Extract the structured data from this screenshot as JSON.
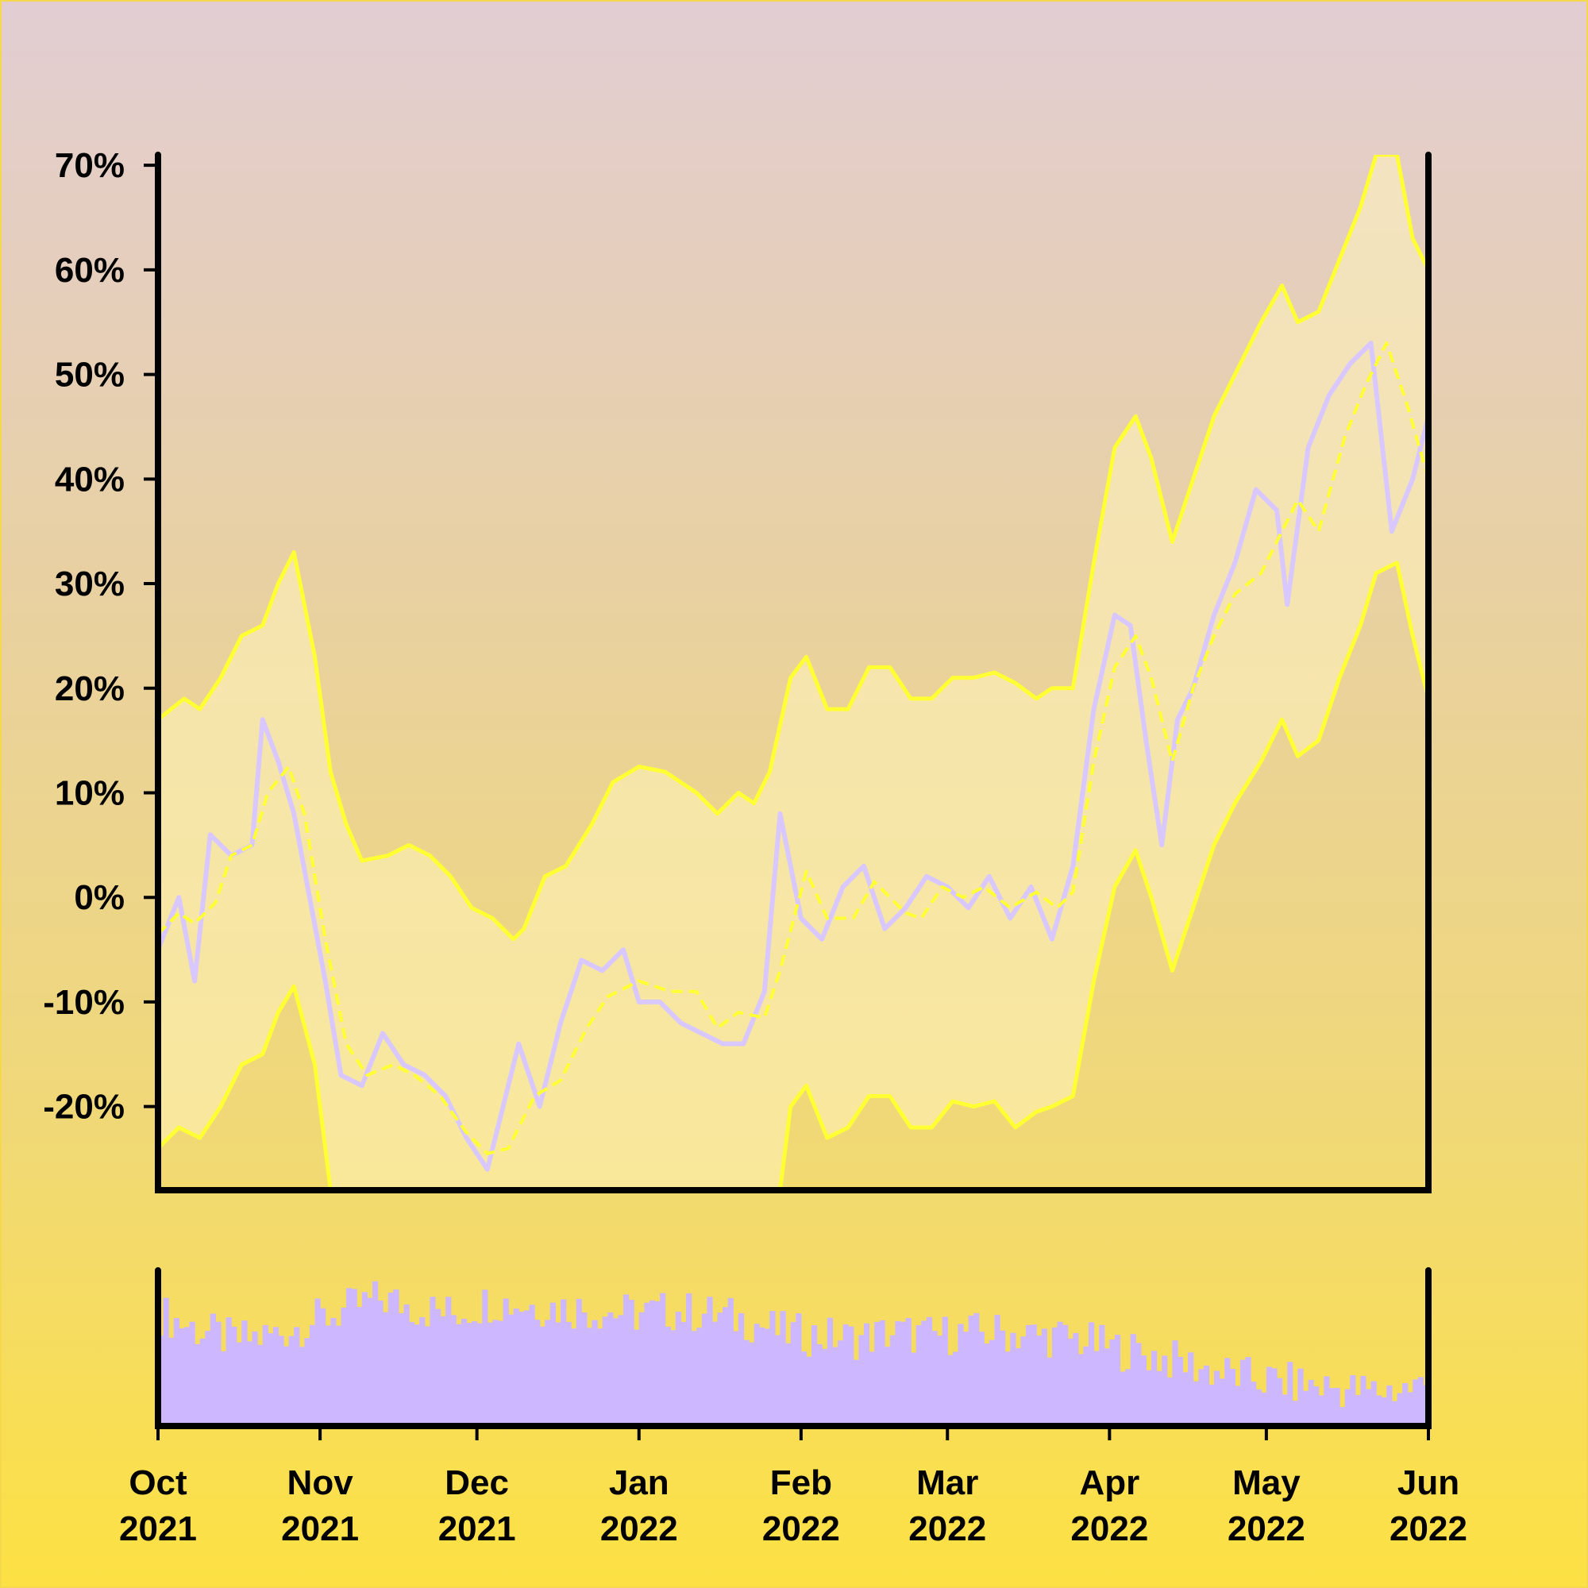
{
  "colors": {
    "band": "#ffff33",
    "price": "#d8c8ff",
    "volume": "#cdb8ff",
    "band_fill": "#fff4bb",
    "axis": "#000000"
  },
  "chart_data": {
    "type": "line",
    "title": "",
    "xlabel": "",
    "ylabel": "",
    "x_range": [
      "2021-10-01",
      "2022-06-01"
    ],
    "ylim": [
      -28,
      71
    ],
    "y_ticks": [
      70,
      60,
      50,
      40,
      30,
      20,
      10,
      0,
      -10,
      -20
    ],
    "y_tick_labels": [
      "70%",
      "60%",
      "50%",
      "40%",
      "30%",
      "20%",
      "10%",
      "0%",
      "-10%",
      "-20%"
    ],
    "x_ticks": [
      {
        "date": "2021-10-01",
        "month": "Oct",
        "year": "2021"
      },
      {
        "date": "2021-11-01",
        "month": "Nov",
        "year": "2021"
      },
      {
        "date": "2021-12-01",
        "month": "Dec",
        "year": "2021"
      },
      {
        "date": "2022-01-01",
        "month": "Jan",
        "year": "2022"
      },
      {
        "date": "2022-02-01",
        "month": "Feb",
        "year": "2022"
      },
      {
        "date": "2022-03-01",
        "month": "Mar",
        "year": "2022"
      },
      {
        "date": "2022-04-01",
        "month": "Apr",
        "year": "2022"
      },
      {
        "date": "2022-05-01",
        "month": "May",
        "year": "2022"
      },
      {
        "date": "2022-06-01",
        "month": "Jun",
        "year": "2022"
      }
    ],
    "grid": false,
    "series": [
      {
        "role": "price",
        "style": "jagged line",
        "points": [
          [
            "2021-10-01",
            -5
          ],
          [
            "2021-10-05",
            0
          ],
          [
            "2021-10-08",
            -8
          ],
          [
            "2021-10-11",
            6
          ],
          [
            "2021-10-15",
            4
          ],
          [
            "2021-10-19",
            5
          ],
          [
            "2021-10-21",
            17
          ],
          [
            "2021-10-24",
            13
          ],
          [
            "2021-10-27",
            8
          ],
          [
            "2021-10-30",
            0
          ],
          [
            "2021-11-02",
            -8
          ],
          [
            "2021-11-05",
            -17
          ],
          [
            "2021-11-09",
            -18
          ],
          [
            "2021-11-13",
            -13
          ],
          [
            "2021-11-17",
            -16
          ],
          [
            "2021-11-21",
            -17
          ],
          [
            "2021-11-25",
            -19
          ],
          [
            "2021-11-29",
            -23
          ],
          [
            "2021-12-03",
            -26
          ],
          [
            "2021-12-06",
            -20
          ],
          [
            "2021-12-09",
            -14
          ],
          [
            "2021-12-13",
            -20
          ],
          [
            "2021-12-17",
            -12
          ],
          [
            "2021-12-21",
            -6
          ],
          [
            "2021-12-25",
            -7
          ],
          [
            "2021-12-29",
            -5
          ],
          [
            "2022-01-01",
            -10
          ],
          [
            "2022-01-05",
            -10
          ],
          [
            "2022-01-09",
            -12
          ],
          [
            "2022-01-13",
            -13
          ],
          [
            "2022-01-17",
            -14
          ],
          [
            "2022-01-21",
            -14
          ],
          [
            "2022-01-25",
            -9
          ],
          [
            "2022-01-28",
            8
          ],
          [
            "2022-02-01",
            -2
          ],
          [
            "2022-02-05",
            -4
          ],
          [
            "2022-02-09",
            1
          ],
          [
            "2022-02-13",
            3
          ],
          [
            "2022-02-17",
            -3
          ],
          [
            "2022-02-21",
            -1
          ],
          [
            "2022-02-25",
            2
          ],
          [
            "2022-03-01",
            1
          ],
          [
            "2022-03-05",
            -1
          ],
          [
            "2022-03-09",
            2
          ],
          [
            "2022-03-13",
            -2
          ],
          [
            "2022-03-17",
            1
          ],
          [
            "2022-03-21",
            -4
          ],
          [
            "2022-03-25",
            3
          ],
          [
            "2022-03-29",
            18
          ],
          [
            "2022-04-02",
            27
          ],
          [
            "2022-04-05",
            26
          ],
          [
            "2022-04-08",
            15
          ],
          [
            "2022-04-11",
            5
          ],
          [
            "2022-04-14",
            17
          ],
          [
            "2022-04-17",
            20
          ],
          [
            "2022-04-21",
            27
          ],
          [
            "2022-04-25",
            32
          ],
          [
            "2022-04-29",
            39
          ],
          [
            "2022-05-03",
            37
          ],
          [
            "2022-05-05",
            28
          ],
          [
            "2022-05-09",
            43
          ],
          [
            "2022-05-13",
            48
          ],
          [
            "2022-05-17",
            51
          ],
          [
            "2022-05-21",
            53
          ],
          [
            "2022-05-25",
            35
          ],
          [
            "2022-05-29",
            40
          ],
          [
            "2022-06-01",
            46
          ]
        ]
      },
      {
        "role": "moving average (middle band)",
        "style": "dashed line",
        "points": [
          [
            "2021-10-01",
            -3.5
          ],
          [
            "2021-10-05",
            -1.5
          ],
          [
            "2021-10-08",
            -2.5
          ],
          [
            "2021-10-12",
            -0.5
          ],
          [
            "2021-10-15",
            4
          ],
          [
            "2021-10-19",
            5
          ],
          [
            "2021-10-22",
            10
          ],
          [
            "2021-10-26",
            12.5
          ],
          [
            "2021-10-29",
            8
          ],
          [
            "2021-11-02",
            -4
          ],
          [
            "2021-11-06",
            -14
          ],
          [
            "2021-11-10",
            -17
          ],
          [
            "2021-11-15",
            -16
          ],
          [
            "2021-11-19",
            -17
          ],
          [
            "2021-11-24",
            -19
          ],
          [
            "2021-11-29",
            -22.5
          ],
          [
            "2021-12-03",
            -24.5
          ],
          [
            "2021-12-07",
            -24
          ],
          [
            "2021-12-12",
            -19
          ],
          [
            "2021-12-17",
            -17.5
          ],
          [
            "2021-12-22",
            -12.5
          ],
          [
            "2021-12-26",
            -9.5
          ],
          [
            "2022-01-01",
            -8
          ],
          [
            "2022-01-07",
            -9
          ],
          [
            "2022-01-12",
            -9
          ],
          [
            "2022-01-16",
            -12.5
          ],
          [
            "2022-01-20",
            -11
          ],
          [
            "2022-01-25",
            -11.5
          ],
          [
            "2022-01-28",
            -7
          ],
          [
            "2022-02-02",
            2.5
          ],
          [
            "2022-02-06",
            -2
          ],
          [
            "2022-02-11",
            -2
          ],
          [
            "2022-02-15",
            1.5
          ],
          [
            "2022-02-21",
            -1.5
          ],
          [
            "2022-02-24",
            -2
          ],
          [
            "2022-02-28",
            1
          ],
          [
            "2022-03-04",
            0
          ],
          [
            "2022-03-08",
            1
          ],
          [
            "2022-03-13",
            -1
          ],
          [
            "2022-03-18",
            0.5
          ],
          [
            "2022-03-22",
            -1
          ],
          [
            "2022-03-25",
            0.5
          ],
          [
            "2022-03-29",
            13
          ],
          [
            "2022-04-02",
            22
          ],
          [
            "2022-04-06",
            25
          ],
          [
            "2022-04-09",
            21
          ],
          [
            "2022-04-13",
            13
          ],
          [
            "2022-04-17",
            20
          ],
          [
            "2022-04-21",
            25
          ],
          [
            "2022-04-25",
            29
          ],
          [
            "2022-04-30",
            31
          ],
          [
            "2022-05-04",
            35
          ],
          [
            "2022-05-07",
            38
          ],
          [
            "2022-05-11",
            35
          ],
          [
            "2022-05-16",
            44
          ],
          [
            "2022-05-20",
            49
          ],
          [
            "2022-05-24",
            53
          ],
          [
            "2022-05-28",
            47
          ],
          [
            "2022-06-01",
            40
          ]
        ]
      },
      {
        "role": "upper band",
        "style": "solid line",
        "points": [
          [
            "2021-10-01",
            17
          ],
          [
            "2021-10-06",
            19
          ],
          [
            "2021-10-09",
            18
          ],
          [
            "2021-10-13",
            21
          ],
          [
            "2021-10-17",
            25
          ],
          [
            "2021-10-21",
            26
          ],
          [
            "2021-10-24",
            30
          ],
          [
            "2021-10-27",
            33
          ],
          [
            "2021-10-31",
            23
          ],
          [
            "2021-11-03",
            12
          ],
          [
            "2021-11-06",
            7
          ],
          [
            "2021-11-09",
            3.5
          ],
          [
            "2021-11-14",
            4
          ],
          [
            "2021-11-18",
            5
          ],
          [
            "2021-11-22",
            4
          ],
          [
            "2021-11-26",
            2
          ],
          [
            "2021-11-30",
            -1
          ],
          [
            "2021-12-04",
            -2
          ],
          [
            "2021-12-08",
            -4
          ],
          [
            "2021-12-10",
            -3
          ],
          [
            "2021-12-14",
            2
          ],
          [
            "2021-12-18",
            3
          ],
          [
            "2021-12-23",
            7
          ],
          [
            "2021-12-27",
            11
          ],
          [
            "2022-01-01",
            12.5
          ],
          [
            "2022-01-06",
            12
          ],
          [
            "2022-01-12",
            10
          ],
          [
            "2022-01-16",
            8
          ],
          [
            "2022-01-20",
            10
          ],
          [
            "2022-01-23",
            9
          ],
          [
            "2022-01-26",
            12
          ],
          [
            "2022-01-30",
            21
          ],
          [
            "2022-02-02",
            23
          ],
          [
            "2022-02-06",
            18
          ],
          [
            "2022-02-10",
            18
          ],
          [
            "2022-02-14",
            22
          ],
          [
            "2022-02-18",
            22
          ],
          [
            "2022-02-22",
            19
          ],
          [
            "2022-02-26",
            19
          ],
          [
            "2022-03-02",
            21
          ],
          [
            "2022-03-06",
            21
          ],
          [
            "2022-03-10",
            21.5
          ],
          [
            "2022-03-14",
            20.5
          ],
          [
            "2022-03-18",
            19
          ],
          [
            "2022-03-21",
            20
          ],
          [
            "2022-03-25",
            20
          ],
          [
            "2022-03-29",
            32
          ],
          [
            "2022-04-02",
            43
          ],
          [
            "2022-04-06",
            46
          ],
          [
            "2022-04-09",
            42
          ],
          [
            "2022-04-13",
            34
          ],
          [
            "2022-04-17",
            40
          ],
          [
            "2022-04-21",
            46
          ],
          [
            "2022-04-25",
            50
          ],
          [
            "2022-04-30",
            55
          ],
          [
            "2022-05-04",
            58.5
          ],
          [
            "2022-05-07",
            55
          ],
          [
            "2022-05-11",
            56
          ],
          [
            "2022-05-15",
            61
          ],
          [
            "2022-05-19",
            66
          ],
          [
            "2022-05-22",
            71
          ],
          [
            "2022-05-26",
            71
          ],
          [
            "2022-05-29",
            63
          ],
          [
            "2022-06-01",
            60
          ]
        ]
      },
      {
        "role": "lower band",
        "style": "solid line",
        "points": [
          [
            "2021-10-01",
            -24
          ],
          [
            "2021-10-05",
            -22
          ],
          [
            "2021-10-09",
            -23
          ],
          [
            "2021-10-13",
            -20
          ],
          [
            "2021-10-17",
            -16
          ],
          [
            "2021-10-21",
            -15
          ],
          [
            "2021-10-24",
            -11
          ],
          [
            "2021-10-27",
            -8.5
          ],
          [
            "2021-10-31",
            -16
          ],
          [
            "2021-11-03",
            -28
          ],
          [
            "2022-01-01",
            -28
          ],
          [
            "2022-01-28",
            -28
          ],
          [
            "2022-01-30",
            -20
          ],
          [
            "2022-02-02",
            -18
          ],
          [
            "2022-02-06",
            -23
          ],
          [
            "2022-02-10",
            -22
          ],
          [
            "2022-02-14",
            -19
          ],
          [
            "2022-02-18",
            -19
          ],
          [
            "2022-02-22",
            -22
          ],
          [
            "2022-02-26",
            -22
          ],
          [
            "2022-03-02",
            -19.5
          ],
          [
            "2022-03-06",
            -20
          ],
          [
            "2022-03-10",
            -19.5
          ],
          [
            "2022-03-14",
            -22
          ],
          [
            "2022-03-18",
            -20.5
          ],
          [
            "2022-03-21",
            -20
          ],
          [
            "2022-03-25",
            -19
          ],
          [
            "2022-03-29",
            -8
          ],
          [
            "2022-04-02",
            1
          ],
          [
            "2022-04-06",
            4.5
          ],
          [
            "2022-04-09",
            0
          ],
          [
            "2022-04-13",
            -7
          ],
          [
            "2022-04-17",
            -1
          ],
          [
            "2022-04-21",
            5
          ],
          [
            "2022-04-25",
            9
          ],
          [
            "2022-04-30",
            13
          ],
          [
            "2022-05-04",
            17
          ],
          [
            "2022-05-07",
            13.5
          ],
          [
            "2022-05-11",
            15
          ],
          [
            "2022-05-15",
            21
          ],
          [
            "2022-05-19",
            26
          ],
          [
            "2022-05-22",
            31
          ],
          [
            "2022-05-26",
            32
          ],
          [
            "2022-05-29",
            25
          ],
          [
            "2022-06-01",
            19
          ]
        ]
      }
    ],
    "volume": {
      "type": "bar",
      "relative_levels": [
        [
          "2021-10-01",
          0.72
        ],
        [
          "2021-10-08",
          0.62
        ],
        [
          "2021-10-15",
          0.55
        ],
        [
          "2021-10-22",
          0.58
        ],
        [
          "2021-10-29",
          0.66
        ],
        [
          "2021-11-05",
          0.74
        ],
        [
          "2021-11-12",
          0.82
        ],
        [
          "2021-11-19",
          0.76
        ],
        [
          "2021-11-26",
          0.72
        ],
        [
          "2021-12-03",
          0.8
        ],
        [
          "2021-12-10",
          0.78
        ],
        [
          "2021-12-17",
          0.76
        ],
        [
          "2021-12-24",
          0.74
        ],
        [
          "2021-12-31",
          0.72
        ],
        [
          "2022-01-07",
          0.74
        ],
        [
          "2022-01-14",
          0.72
        ],
        [
          "2022-01-21",
          0.68
        ],
        [
          "2022-01-28",
          0.6
        ],
        [
          "2022-02-04",
          0.58
        ],
        [
          "2022-02-11",
          0.56
        ],
        [
          "2022-02-18",
          0.6
        ],
        [
          "2022-02-25",
          0.58
        ],
        [
          "2022-03-04",
          0.6
        ],
        [
          "2022-03-11",
          0.6
        ],
        [
          "2022-03-18",
          0.58
        ],
        [
          "2022-03-25",
          0.56
        ],
        [
          "2022-04-01",
          0.5
        ],
        [
          "2022-04-08",
          0.46
        ],
        [
          "2022-04-15",
          0.4
        ],
        [
          "2022-04-22",
          0.34
        ],
        [
          "2022-04-29",
          0.3
        ],
        [
          "2022-05-06",
          0.27
        ],
        [
          "2022-05-13",
          0.25
        ],
        [
          "2022-05-20",
          0.22
        ],
        [
          "2022-05-27",
          0.24
        ],
        [
          "2022-06-01",
          0.27
        ]
      ]
    }
  }
}
